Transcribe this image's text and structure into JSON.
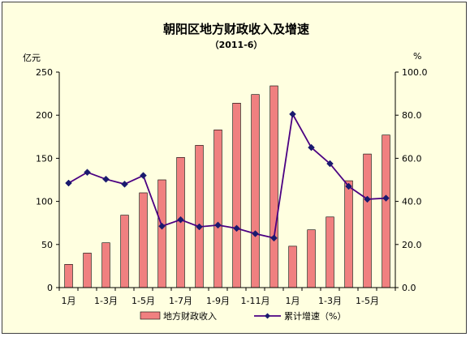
{
  "chart_data": {
    "type": "bar+line",
    "title": "朝阳区地方财政收入及增速",
    "subtitle": "（2011-6）",
    "left_unit": "亿元",
    "right_unit": "%",
    "left_ylim": [
      0,
      250
    ],
    "left_ticks": [
      "0",
      "50",
      "100",
      "150",
      "200",
      "250"
    ],
    "right_ylim": [
      0,
      100
    ],
    "right_ticks": [
      "0.0",
      "20.0",
      "40.0",
      "60.0",
      "80.0",
      "100.0"
    ],
    "x_tick_labels": [
      "1月",
      "1-3月",
      "1-5月",
      "1-7月",
      "1-9月",
      "1-11月",
      "1月",
      "1-3月",
      "1-5月"
    ],
    "x_tick_label_positions": [
      0,
      2,
      4,
      6,
      8,
      10,
      12,
      14,
      16
    ],
    "bar_series": {
      "name": "地方财政收入",
      "color": "#f08080",
      "values": [
        27,
        40,
        52,
        84,
        110,
        125,
        151,
        165,
        183,
        214,
        224,
        234,
        48,
        67,
        82,
        124,
        155,
        177
      ]
    },
    "line_series": {
      "name": "累计增速（%）",
      "color": "#4b0082",
      "values": [
        48.5,
        53.5,
        50.3,
        48.0,
        52.0,
        28.5,
        31.5,
        28.2,
        29.0,
        27.5,
        25.0,
        23.0,
        80.5,
        65.0,
        57.5,
        47.0,
        41.0,
        41.5
      ]
    },
    "grid": false,
    "legend_position": "bottom"
  }
}
